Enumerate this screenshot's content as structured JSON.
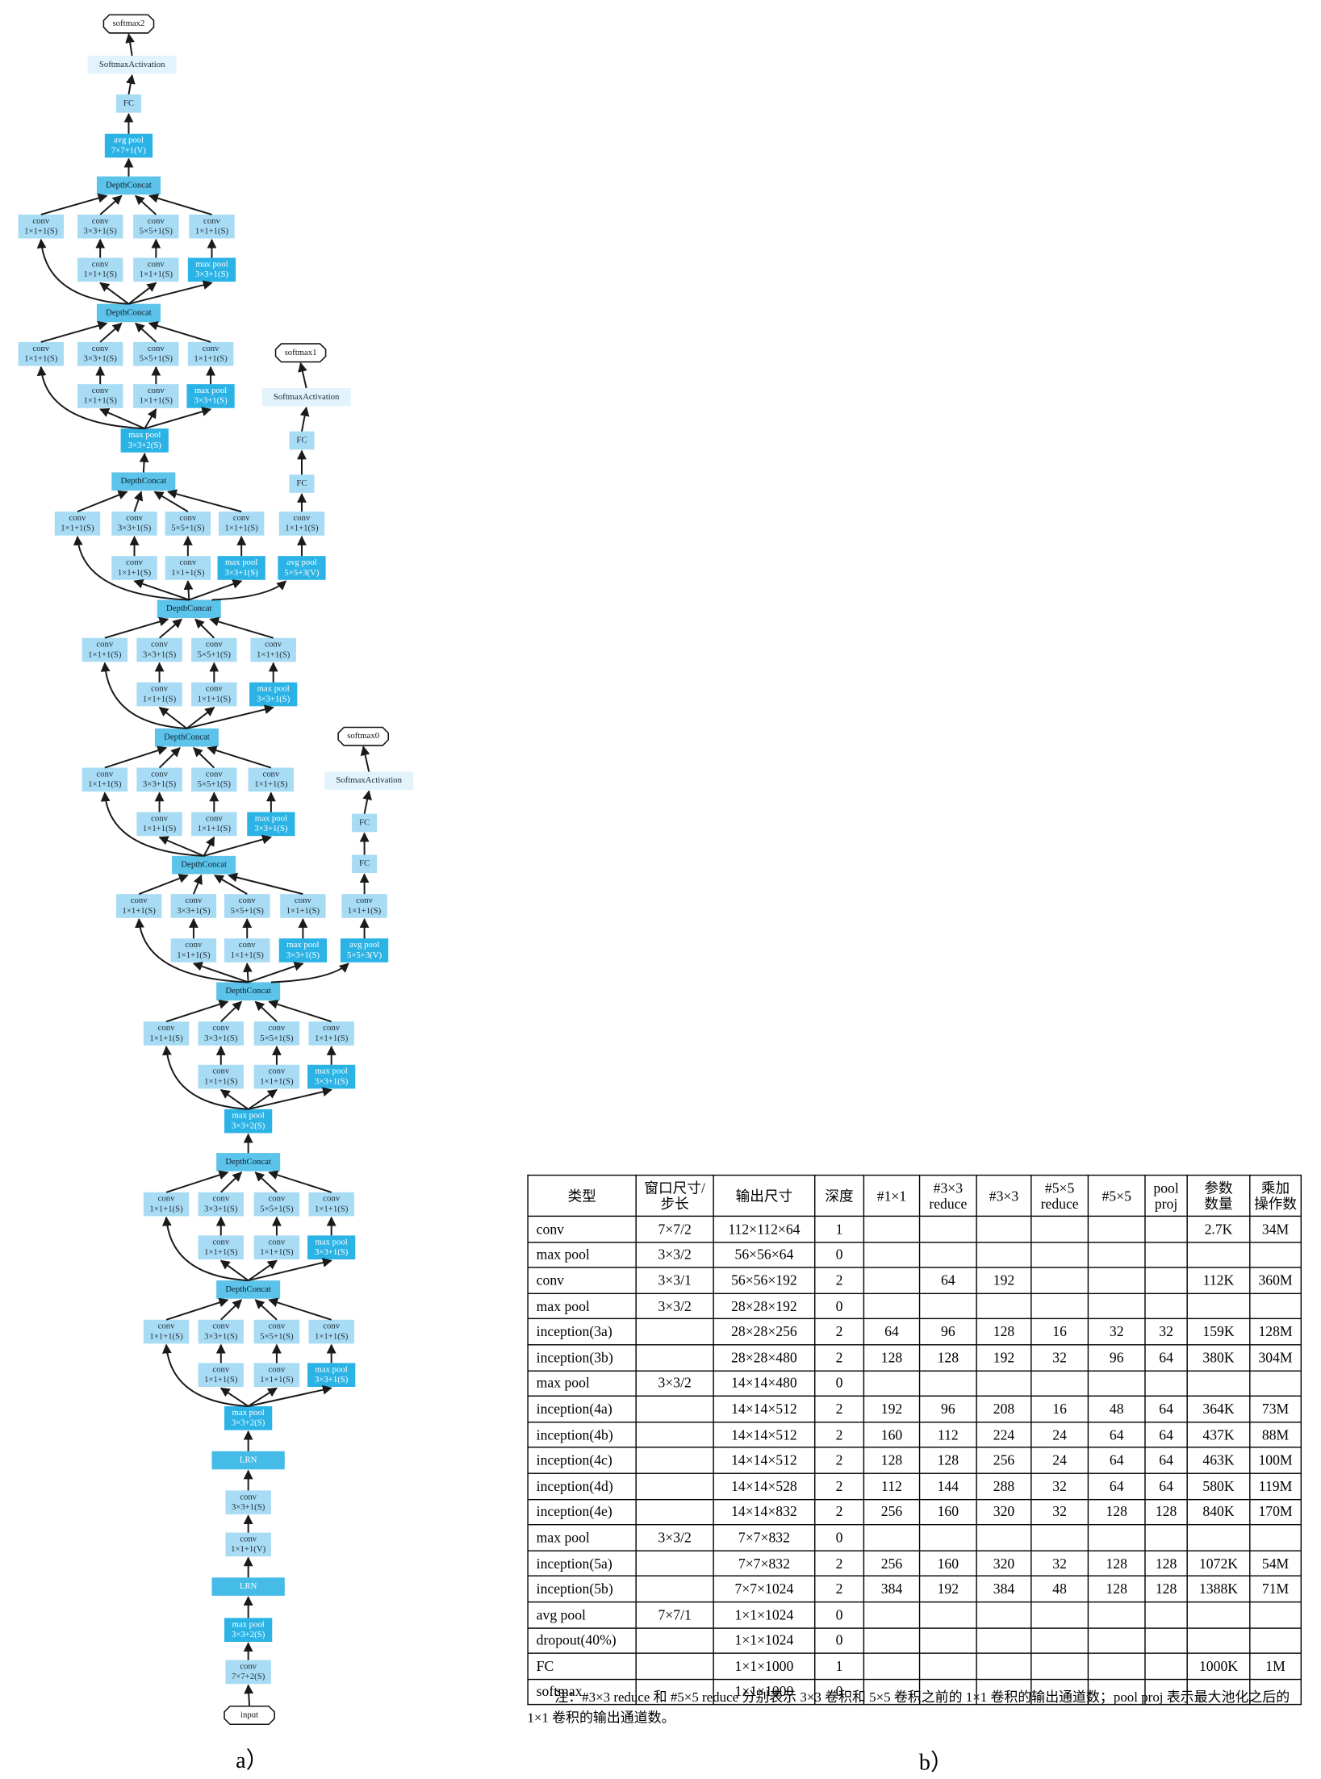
{
  "diagram": {
    "input": "input",
    "stem": [
      [
        "conv",
        "7×7+2(S)"
      ],
      [
        "max pool",
        "3×3+2(S)"
      ],
      [
        "LRN"
      ],
      [
        "conv",
        "1×1+1(V)"
      ],
      [
        "conv",
        "3×3+1(S)"
      ],
      [
        "LRN"
      ],
      [
        "max pool",
        "3×3+2(S)"
      ]
    ],
    "modules": [
      {
        "branches": [
          [
            [
              "conv",
              "1×1+1(S)"
            ]
          ],
          [
            [
              "conv",
              "1×1+1(S)"
            ],
            [
              "conv",
              "3×3+1(S)"
            ]
          ],
          [
            [
              "conv",
              "1×1+1(S)"
            ],
            [
              "conv",
              "5×5+1(S)"
            ]
          ],
          [
            [
              "max pool",
              "3×3+1(S)"
            ],
            [
              "conv",
              "1×1+1(S)"
            ]
          ]
        ],
        "concat": "DepthConcat"
      },
      {
        "branches": [
          [
            [
              "conv",
              "1×1+1(S)"
            ]
          ],
          [
            [
              "conv",
              "1×1+1(S)"
            ],
            [
              "conv",
              "3×3+1(S)"
            ]
          ],
          [
            [
              "conv",
              "1×1+1(S)"
            ],
            [
              "conv",
              "5×5+1(S)"
            ]
          ],
          [
            [
              "max pool",
              "3×3+1(S)"
            ],
            [
              "conv",
              "1×1+1(S)"
            ]
          ]
        ],
        "concat": "DepthConcat"
      },
      {
        "branches": [
          [
            [
              "conv",
              "1×1+1(S)"
            ]
          ],
          [
            [
              "conv",
              "1×1+1(S)"
            ],
            [
              "conv",
              "3×3+1(S)"
            ]
          ],
          [
            [
              "conv",
              "1×1+1(S)"
            ],
            [
              "conv",
              "5×5+1(S)"
            ]
          ],
          [
            [
              "max pool",
              "3×3+1(S)"
            ],
            [
              "conv",
              "1×1+1(S)"
            ]
          ]
        ],
        "concat": "DepthConcat"
      },
      {
        "branches": [
          [
            [
              "conv",
              "1×1+1(S)"
            ]
          ],
          [
            [
              "conv",
              "1×1+1(S)"
            ],
            [
              "conv",
              "3×3+1(S)"
            ]
          ],
          [
            [
              "conv",
              "1×1+1(S)"
            ],
            [
              "conv",
              "5×5+1(S)"
            ]
          ],
          [
            [
              "max pool",
              "3×3+1(S)"
            ],
            [
              "conv",
              "1×1+1(S)"
            ]
          ]
        ],
        "concat": "DepthConcat"
      },
      {
        "branches": [
          [
            [
              "conv",
              "1×1+1(S)"
            ]
          ],
          [
            [
              "conv",
              "1×1+1(S)"
            ],
            [
              "conv",
              "3×3+1(S)"
            ]
          ],
          [
            [
              "conv",
              "1×1+1(S)"
            ],
            [
              "conv",
              "5×5+1(S)"
            ]
          ],
          [
            [
              "max pool",
              "3×3+1(S)"
            ],
            [
              "conv",
              "1×1+1(S)"
            ]
          ]
        ],
        "concat": "DepthConcat"
      },
      {
        "branches": [
          [
            [
              "conv",
              "1×1+1(S)"
            ]
          ],
          [
            [
              "conv",
              "1×1+1(S)"
            ],
            [
              "conv",
              "3×3+1(S)"
            ]
          ],
          [
            [
              "conv",
              "1×1+1(S)"
            ],
            [
              "conv",
              "5×5+1(S)"
            ]
          ],
          [
            [
              "max pool",
              "3×3+1(S)"
            ],
            [
              "conv",
              "1×1+1(S)"
            ]
          ]
        ],
        "concat": "DepthConcat"
      },
      {
        "branches": [
          [
            [
              "conv",
              "1×1+1(S)"
            ]
          ],
          [
            [
              "conv",
              "1×1+1(S)"
            ],
            [
              "conv",
              "3×3+1(S)"
            ]
          ],
          [
            [
              "conv",
              "1×1+1(S)"
            ],
            [
              "conv",
              "5×5+1(S)"
            ]
          ],
          [
            [
              "max pool",
              "3×3+1(S)"
            ],
            [
              "conv",
              "1×1+1(S)"
            ]
          ]
        ],
        "concat": "DepthConcat"
      },
      {
        "branches": [
          [
            [
              "conv",
              "1×1+1(S)"
            ]
          ],
          [
            [
              "conv",
              "1×1+1(S)"
            ],
            [
              "conv",
              "3×3+1(S)"
            ]
          ],
          [
            [
              "conv",
              "1×1+1(S)"
            ],
            [
              "conv",
              "5×5+1(S)"
            ]
          ],
          [
            [
              "max pool",
              "3×3+1(S)"
            ],
            [
              "conv",
              "1×1+1(S)"
            ]
          ]
        ],
        "concat": "DepthConcat"
      },
      {
        "branches": [
          [
            [
              "conv",
              "1×1+1(S)"
            ]
          ],
          [
            [
              "conv",
              "1×1+1(S)"
            ],
            [
              "conv",
              "3×3+1(S)"
            ]
          ],
          [
            [
              "conv",
              "1×1+1(S)"
            ],
            [
              "conv",
              "5×5+1(S)"
            ]
          ],
          [
            [
              "max pool",
              "3×3+1(S)"
            ],
            [
              "conv",
              "1×1+1(S)"
            ]
          ]
        ],
        "concat": "DepthConcat"
      }
    ],
    "pools": [
      [
        "max pool",
        "3×3+2(S)"
      ],
      [
        "max pool",
        "3×3+2(S)"
      ]
    ],
    "aux": [
      {
        "nodes": [
          [
            "avg pool",
            "5×5+3(V)"
          ],
          [
            "conv",
            "1×1+1(S)"
          ],
          [
            "FC"
          ],
          [
            "FC"
          ],
          [
            "SoftmaxActivation"
          ]
        ],
        "output": "softmax0"
      },
      {
        "nodes": [
          [
            "avg pool",
            "5×5+3(V)"
          ],
          [
            "conv",
            "1×1+1(S)"
          ],
          [
            "FC"
          ],
          [
            "FC"
          ],
          [
            "SoftmaxActivation"
          ]
        ],
        "output": "softmax1"
      }
    ],
    "head": [
      [
        "avg pool",
        "7×7+1(V)"
      ],
      [
        "FC"
      ],
      [
        "SoftmaxActivation"
      ]
    ],
    "output": "softmax2"
  },
  "table": {
    "header": [
      [
        "类型"
      ],
      [
        "窗口尺寸/",
        "步长"
      ],
      [
        "输出尺寸"
      ],
      [
        "深度"
      ],
      [
        "#1×1"
      ],
      [
        "#3×3",
        "reduce"
      ],
      [
        "#3×3"
      ],
      [
        "#5×5",
        "reduce"
      ],
      [
        "#5×5"
      ],
      [
        "pool",
        "proj"
      ],
      [
        "参数",
        "数量"
      ],
      [
        "乘加",
        "操作数"
      ]
    ],
    "rows": [
      [
        "conv",
        "7×7/2",
        "112×112×64",
        1,
        null,
        null,
        null,
        null,
        null,
        null,
        "2.7K",
        "34M"
      ],
      [
        "max pool",
        "3×3/2",
        "56×56×64",
        0,
        null,
        null,
        null,
        null,
        null,
        null,
        null,
        null
      ],
      [
        "conv",
        "3×3/1",
        "56×56×192",
        2,
        null,
        64,
        192,
        null,
        null,
        null,
        "112K",
        "360M"
      ],
      [
        "max pool",
        "3×3/2",
        "28×28×192",
        0,
        null,
        null,
        null,
        null,
        null,
        null,
        null,
        null
      ],
      [
        "inception(3a)",
        null,
        "28×28×256",
        2,
        64,
        96,
        128,
        16,
        32,
        32,
        "159K",
        "128M"
      ],
      [
        "inception(3b)",
        null,
        "28×28×480",
        2,
        128,
        128,
        192,
        32,
        96,
        64,
        "380K",
        "304M"
      ],
      [
        "max pool",
        "3×3/2",
        "14×14×480",
        0,
        null,
        null,
        null,
        null,
        null,
        null,
        null,
        null
      ],
      [
        "inception(4a)",
        null,
        "14×14×512",
        2,
        192,
        96,
        208,
        16,
        48,
        64,
        "364K",
        "73M"
      ],
      [
        "inception(4b)",
        null,
        "14×14×512",
        2,
        160,
        112,
        224,
        24,
        64,
        64,
        "437K",
        "88M"
      ],
      [
        "inception(4c)",
        null,
        "14×14×512",
        2,
        128,
        128,
        256,
        24,
        64,
        64,
        "463K",
        "100M"
      ],
      [
        "inception(4d)",
        null,
        "14×14×528",
        2,
        112,
        144,
        288,
        32,
        64,
        64,
        "580K",
        "119M"
      ],
      [
        "inception(4e)",
        null,
        "14×14×832",
        2,
        256,
        160,
        320,
        32,
        128,
        128,
        "840K",
        "170M"
      ],
      [
        "max pool",
        "3×3/2",
        "7×7×832",
        0,
        null,
        null,
        null,
        null,
        null,
        null,
        null,
        null
      ],
      [
        "inception(5a)",
        null,
        "7×7×832",
        2,
        256,
        160,
        320,
        32,
        128,
        128,
        "1072K",
        "54M"
      ],
      [
        "inception(5b)",
        null,
        "7×7×1024",
        2,
        384,
        192,
        384,
        48,
        128,
        128,
        "1388K",
        "71M"
      ],
      [
        "avg pool",
        "7×7/1",
        "1×1×1024",
        0,
        null,
        null,
        null,
        null,
        null,
        null,
        null,
        null
      ],
      [
        "dropout(40%)",
        null,
        "1×1×1024",
        0,
        null,
        null,
        null,
        null,
        null,
        null,
        null,
        null
      ],
      [
        "FC",
        null,
        "1×1×1000",
        1,
        null,
        null,
        null,
        null,
        null,
        null,
        "1000K",
        "1M"
      ],
      [
        "softmax",
        null,
        "1×1×1000",
        0,
        null,
        null,
        null,
        null,
        null,
        null,
        null,
        null
      ]
    ],
    "note": "注：#3×3 reduce 和 #5×5 reduce 分别表示 3×3 卷积和 5×5 卷积之前的 1×1 卷积的输出通道数；pool proj 表示最大池化之后的 1×1 卷积的输出通道数。"
  },
  "captions": {
    "a": "a）",
    "b": "b）"
  }
}
